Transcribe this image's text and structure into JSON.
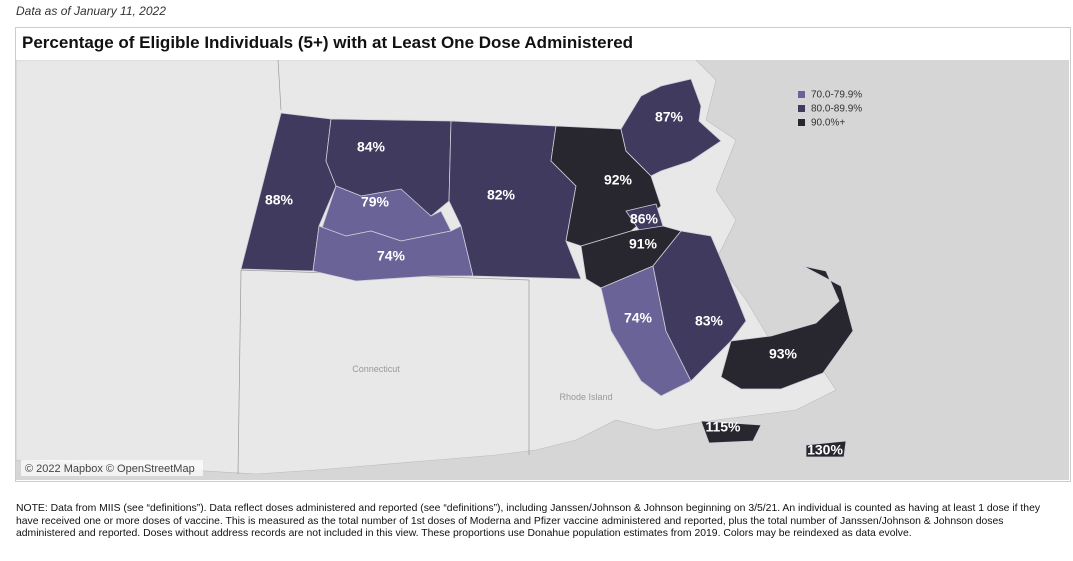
{
  "header": {
    "date": "Data as of January 11, 2022",
    "title": "Percentage of Eligible Individuals (5+) with at Least One Dose Administered"
  },
  "legend": {
    "items": [
      "70.0-79.9%",
      "80.0-89.9%",
      "90.0%+"
    ]
  },
  "regions": [
    {
      "label": "88%"
    },
    {
      "label": "84%"
    },
    {
      "label": "79%"
    },
    {
      "label": "74%"
    },
    {
      "label": "82%"
    },
    {
      "label": "92%"
    },
    {
      "label": "87%"
    },
    {
      "label": "86%"
    },
    {
      "label": "91%"
    },
    {
      "label": "74%"
    },
    {
      "label": "83%"
    },
    {
      "label": "93%"
    },
    {
      "label": "115%"
    },
    {
      "label": "130%"
    }
  ],
  "map_labels": [
    "Connecticut",
    "Rhode Island"
  ],
  "attribution": "© 2022 Mapbox © OpenStreetMap",
  "note": "NOTE: Data from MIIS (see “definitions”). Data reflect doses administered and reported (see “definitions”), including Janssen/Johnson & Johnson beginning on 3/5/21. An individual is counted as having at least 1 dose if they have received one or more doses of vaccine. This is measured as the total number of 1st doses of Moderna and Pfizer vaccine administered and reported, plus the total number of Janssen/Johnson & Johnson doses administered and reported. Doses without address records are not included in this view. These proportions use Donahue population estimates from 2019. Colors may be reindexed as data evolve."
}
